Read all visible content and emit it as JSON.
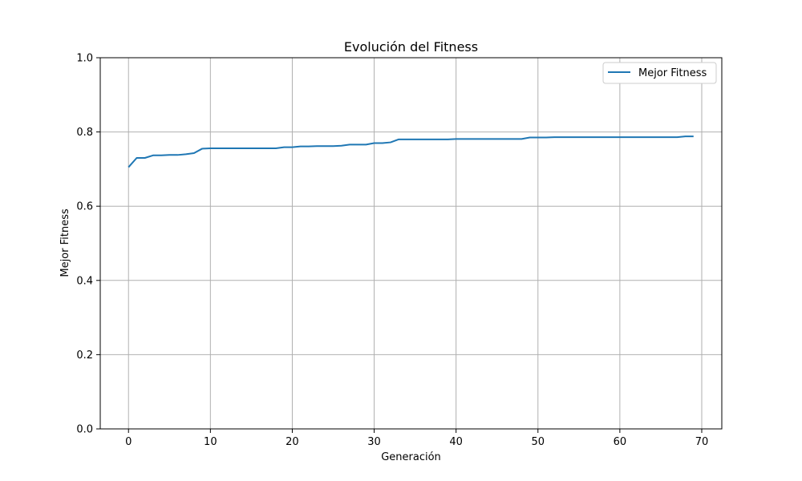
{
  "chart_data": {
    "type": "line",
    "title": "Evolución del Fitness",
    "xlabel": "Generación",
    "ylabel": "Mejor Fitness",
    "xlim": [
      -3.45,
      72.45
    ],
    "ylim": [
      0,
      1
    ],
    "xticks": [
      0,
      10,
      20,
      30,
      40,
      50,
      60,
      70
    ],
    "yticks": [
      0.0,
      0.2,
      0.4,
      0.6,
      0.8,
      1.0
    ],
    "ytick_labels": [
      "0.0",
      "0.2",
      "0.4",
      "0.6",
      "0.8",
      "1.0"
    ],
    "grid": true,
    "legend_position": "top-right",
    "series": [
      {
        "name": "Mejor Fitness",
        "color": "#1f77b4",
        "x": [
          0,
          1,
          2,
          3,
          4,
          5,
          6,
          7,
          8,
          9,
          10,
          11,
          12,
          13,
          14,
          15,
          16,
          17,
          18,
          19,
          20,
          21,
          22,
          23,
          24,
          25,
          26,
          27,
          28,
          29,
          30,
          31,
          32,
          33,
          34,
          35,
          36,
          37,
          38,
          39,
          40,
          41,
          42,
          43,
          44,
          45,
          46,
          47,
          48,
          49,
          50,
          51,
          52,
          53,
          54,
          55,
          56,
          57,
          58,
          59,
          60,
          61,
          62,
          63,
          64,
          65,
          66,
          67,
          68,
          69
        ],
        "y": [
          0.705,
          0.73,
          0.73,
          0.737,
          0.737,
          0.738,
          0.738,
          0.74,
          0.743,
          0.755,
          0.756,
          0.756,
          0.756,
          0.756,
          0.756,
          0.756,
          0.756,
          0.756,
          0.756,
          0.759,
          0.759,
          0.761,
          0.761,
          0.762,
          0.762,
          0.762,
          0.763,
          0.766,
          0.766,
          0.766,
          0.77,
          0.77,
          0.772,
          0.78,
          0.78,
          0.78,
          0.78,
          0.78,
          0.78,
          0.78,
          0.781,
          0.781,
          0.781,
          0.781,
          0.781,
          0.781,
          0.781,
          0.781,
          0.781,
          0.785,
          0.785,
          0.785,
          0.786,
          0.786,
          0.786,
          0.786,
          0.786,
          0.786,
          0.786,
          0.786,
          0.786,
          0.786,
          0.786,
          0.786,
          0.786,
          0.786,
          0.786,
          0.786,
          0.788,
          0.788
        ]
      }
    ]
  }
}
